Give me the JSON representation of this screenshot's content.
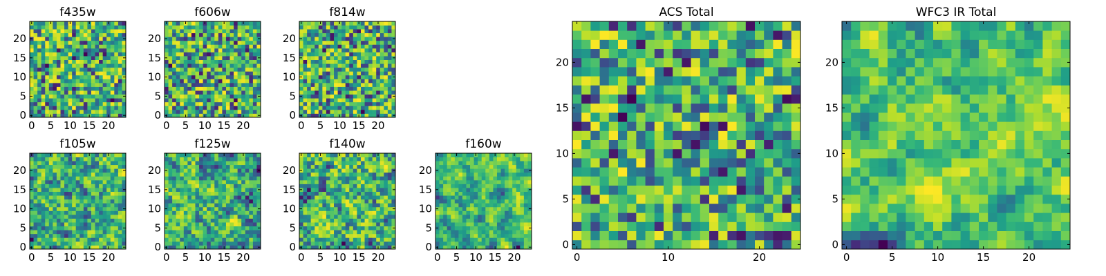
{
  "figure": {
    "colormap": "viridis",
    "colors": {
      "low": "#440154",
      "high": "#fde725",
      "axis": "#000000",
      "background": "#ffffff"
    }
  },
  "chart_data": [
    {
      "type": "heatmap",
      "title": "f435w",
      "grid_size": [
        25,
        25
      ],
      "xticks": [
        "0",
        "5",
        "10",
        "15",
        "20"
      ],
      "yticks": [
        "0",
        "5",
        "10",
        "15",
        "20"
      ],
      "value_range": [
        0,
        1
      ],
      "values": []
    },
    {
      "type": "heatmap",
      "title": "f606w",
      "grid_size": [
        25,
        25
      ],
      "xticks": [
        "0",
        "5",
        "10",
        "15",
        "20"
      ],
      "yticks": [
        "0",
        "5",
        "10",
        "15",
        "20"
      ],
      "value_range": [
        0,
        1
      ],
      "values": []
    },
    {
      "type": "heatmap",
      "title": "f814w",
      "grid_size": [
        25,
        25
      ],
      "xticks": [
        "0",
        "5",
        "10",
        "15",
        "20"
      ],
      "yticks": [
        "0",
        "5",
        "10",
        "15",
        "20"
      ],
      "value_range": [
        0,
        1
      ],
      "values": []
    },
    {
      "type": "heatmap",
      "title": "f105w",
      "grid_size": [
        25,
        25
      ],
      "xticks": [
        "0",
        "5",
        "10",
        "15",
        "20"
      ],
      "yticks": [
        "0",
        "5",
        "10",
        "15",
        "20"
      ],
      "value_range": [
        0,
        1
      ],
      "values": []
    },
    {
      "type": "heatmap",
      "title": "f125w",
      "grid_size": [
        25,
        25
      ],
      "xticks": [
        "0",
        "5",
        "10",
        "15",
        "20"
      ],
      "yticks": [
        "0",
        "5",
        "10",
        "15",
        "20"
      ],
      "value_range": [
        0,
        1
      ],
      "values": []
    },
    {
      "type": "heatmap",
      "title": "f140w",
      "grid_size": [
        25,
        25
      ],
      "xticks": [
        "0",
        "5",
        "10",
        "15",
        "20"
      ],
      "yticks": [
        "0",
        "5",
        "10",
        "15",
        "20"
      ],
      "value_range": [
        0,
        1
      ],
      "values": []
    },
    {
      "type": "heatmap",
      "title": "f160w",
      "grid_size": [
        25,
        25
      ],
      "xticks": [
        "0",
        "5",
        "10",
        "15",
        "20"
      ],
      "yticks": [
        "0",
        "5",
        "10",
        "15",
        "20"
      ],
      "value_range": [
        0,
        1
      ],
      "values": []
    },
    {
      "type": "heatmap",
      "title": "ACS Total",
      "grid_size": [
        25,
        25
      ],
      "xticks": [
        "0",
        "10",
        "20"
      ],
      "yticks": [
        "0",
        "5",
        "10",
        "15",
        "20"
      ],
      "value_range": [
        0,
        1
      ],
      "values": []
    },
    {
      "type": "heatmap",
      "title": "WFC3 IR Total",
      "grid_size": [
        25,
        25
      ],
      "xticks": [
        "0",
        "5",
        "10",
        "15",
        "20"
      ],
      "yticks": [
        "0",
        "5",
        "10",
        "15",
        "20"
      ],
      "value_range": [
        0,
        1
      ],
      "values": []
    }
  ]
}
